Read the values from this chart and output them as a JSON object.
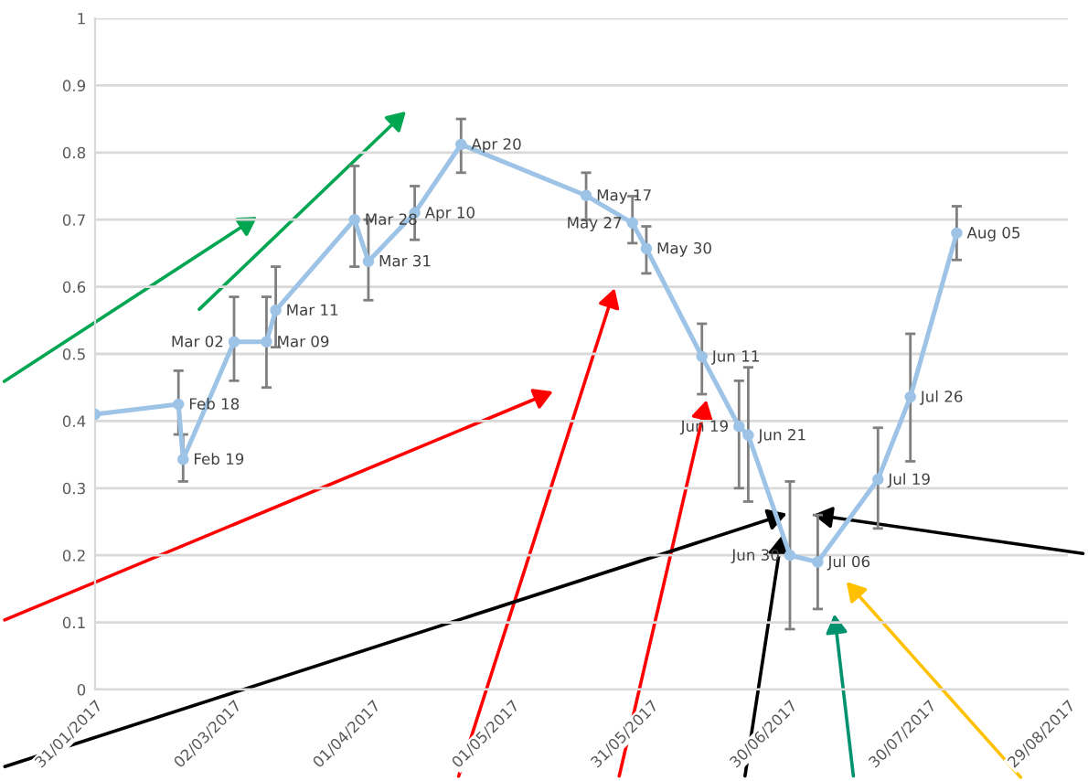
{
  "chart_data": {
    "type": "line",
    "x": [
      "2017-01-31",
      "2017-02-18",
      "2017-02-19",
      "2017-03-02",
      "2017-03-09",
      "2017-03-11",
      "2017-03-28",
      "2017-03-31",
      "2017-04-10",
      "2017-04-20",
      "2017-05-17",
      "2017-05-27",
      "2017-05-30",
      "2017-06-11",
      "2017-06-19",
      "2017-06-21",
      "2017-06-30",
      "2017-07-06",
      "2017-07-19",
      "2017-07-26",
      "2017-08-05"
    ],
    "series": [
      {
        "color": "#9dc3e6",
        "values": [
          0.41,
          0.425,
          0.343,
          0.518,
          0.518,
          0.565,
          0.7,
          0.638,
          0.71,
          0.812,
          0.736,
          0.695,
          0.657,
          0.496,
          0.392,
          0.379,
          0.2,
          0.19,
          0.313,
          0.436,
          0.68
        ],
        "errors": [
          null,
          [
            0.38,
            0.475
          ],
          [
            0.31,
            0.38
          ],
          [
            0.46,
            0.585
          ],
          [
            0.45,
            0.585
          ],
          [
            0.51,
            0.63
          ],
          [
            0.63,
            0.78
          ],
          [
            0.58,
            0.7
          ],
          [
            0.67,
            0.75
          ],
          [
            0.77,
            0.85
          ],
          [
            0.7,
            0.77
          ],
          [
            0.665,
            0.735
          ],
          [
            0.62,
            0.69
          ],
          [
            0.44,
            0.545
          ],
          [
            0.3,
            0.46
          ],
          [
            0.28,
            0.48
          ],
          [
            0.09,
            0.31
          ],
          [
            0.12,
            0.26
          ],
          [
            0.24,
            0.39
          ],
          [
            0.34,
            0.53
          ],
          [
            0.64,
            0.72
          ]
        ]
      }
    ],
    "annotations": [
      {
        "text": "Feb 18",
        "x": "2017-02-18",
        "y": 0.425
      },
      {
        "text": "Feb 19",
        "x": "2017-02-19",
        "y": 0.343
      },
      {
        "text": "Mar 02",
        "x": "2017-03-02",
        "y": 0.518
      },
      {
        "text": "Mar 09",
        "x": "2017-03-09",
        "y": 0.518
      },
      {
        "text": "Mar 11",
        "x": "2017-03-11",
        "y": 0.565
      },
      {
        "text": "Mar 28",
        "x": "2017-03-28",
        "y": 0.7
      },
      {
        "text": "Mar 31",
        "x": "2017-03-31",
        "y": 0.638
      },
      {
        "text": "Apr 10",
        "x": "2017-04-10",
        "y": 0.71
      },
      {
        "text": "Apr 20",
        "x": "2017-04-20",
        "y": 0.812
      },
      {
        "text": "May 17",
        "x": "2017-05-17",
        "y": 0.736
      },
      {
        "text": "May 27",
        "x": "2017-05-27",
        "y": 0.695
      },
      {
        "text": "May 30",
        "x": "2017-05-30",
        "y": 0.657
      },
      {
        "text": "Jun 11",
        "x": "2017-06-11",
        "y": 0.496
      },
      {
        "text": "Jun 19",
        "x": "2017-06-19",
        "y": 0.392
      },
      {
        "text": "Jun 21",
        "x": "2017-06-21",
        "y": 0.379
      },
      {
        "text": "Jun 30",
        "x": "2017-06-30",
        "y": 0.2
      },
      {
        "text": "Jul 06",
        "x": "2017-07-06",
        "y": 0.19
      },
      {
        "text": "Jul 19",
        "x": "2017-07-19",
        "y": 0.313
      },
      {
        "text": "Jul 26",
        "x": "2017-07-26",
        "y": 0.436
      },
      {
        "text": "Aug 05",
        "x": "2017-08-05",
        "y": 0.68
      }
    ],
    "xlim": [
      "2017-01-31",
      "2017-08-29"
    ],
    "xticks": [
      {
        "value": "2017-01-31",
        "label": "31/01/2017"
      },
      {
        "value": "2017-03-02",
        "label": "02/03/2017"
      },
      {
        "value": "2017-04-01",
        "label": "01/04/2017"
      },
      {
        "value": "2017-05-01",
        "label": "01/05/2017"
      },
      {
        "value": "2017-05-31",
        "label": "31/05/2017"
      },
      {
        "value": "2017-06-30",
        "label": "30/06/2017"
      },
      {
        "value": "2017-07-30",
        "label": "30/07/2017"
      },
      {
        "value": "2017-08-29",
        "label": "29/08/2017"
      }
    ],
    "ylim": [
      0,
      1
    ],
    "yticks": [
      0,
      0.1,
      0.2,
      0.3,
      0.4,
      0.5,
      0.6,
      0.7,
      0.8,
      0.9,
      1
    ],
    "grid": "y",
    "marker": "circle",
    "line_style": "solid"
  }
}
